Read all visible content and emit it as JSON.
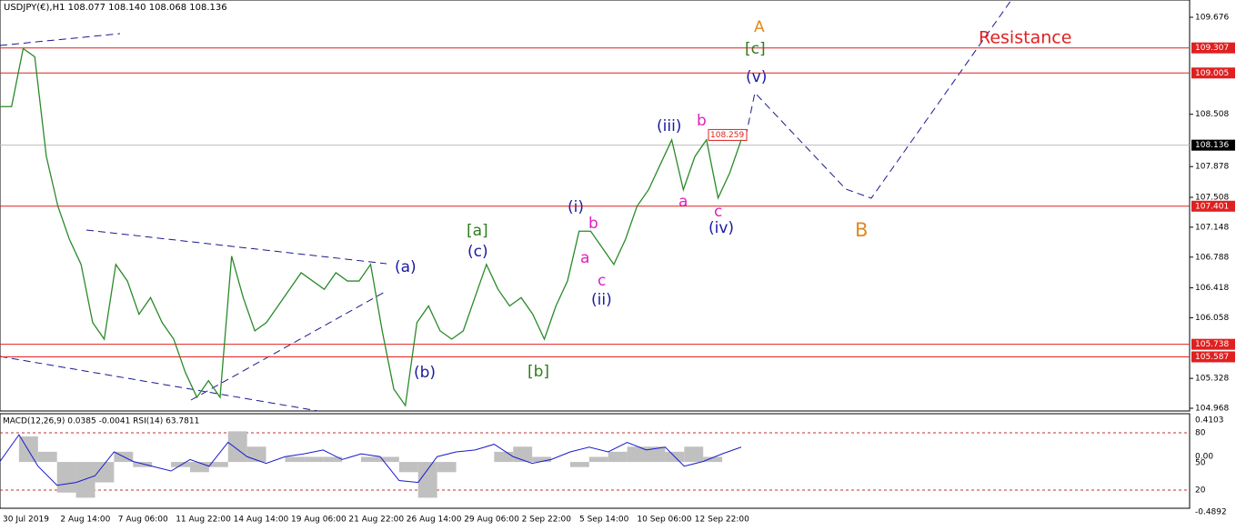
{
  "header": {
    "symbol": "USDJPY(€),H1  108.077 108.140 108.068 108.136"
  },
  "price_axis": {
    "ylim": [
      104.968,
      109.676
    ],
    "ticks": [
      109.676,
      108.508,
      107.878,
      107.508,
      107.148,
      106.788,
      106.418,
      106.058,
      105.328,
      104.968
    ]
  },
  "levels": [
    109.307,
    109.005,
    107.401,
    105.738,
    105.587
  ],
  "current_price": 108.136,
  "marker_price": 108.259,
  "time_labels": [
    "30 Jul 2019",
    "2 Aug 14:00",
    "7 Aug 06:00",
    "11 Aug 22:00",
    "14 Aug 14:00",
    "19 Aug 06:00",
    "21 Aug 22:00",
    "26 Aug 14:00",
    "29 Aug 06:00",
    "2 Sep 22:00",
    "5 Sep 14:00",
    "10 Sep 06:00",
    "12 Sep 22:00"
  ],
  "price": {
    "values": [
      108.6,
      108.6,
      109.3,
      109.2,
      108.0,
      107.4,
      107.0,
      106.7,
      106.0,
      105.8,
      106.7,
      106.5,
      106.1,
      106.3,
      106.0,
      105.8,
      105.4,
      105.1,
      105.3,
      105.1,
      106.8,
      106.3,
      105.9,
      106.0,
      106.2,
      106.4,
      106.6,
      106.5,
      106.4,
      106.6,
      106.5,
      106.5,
      106.7,
      105.9,
      105.2,
      105.0,
      106.0,
      106.2,
      105.9,
      105.8,
      105.9,
      106.3,
      106.7,
      106.4,
      106.2,
      106.3,
      106.1,
      105.8,
      106.2,
      106.5,
      107.1,
      107.1,
      106.9,
      106.7,
      107.0,
      107.4,
      107.6,
      107.9,
      108.2,
      107.6,
      108.0,
      108.2,
      107.5,
      107.8,
      108.2
    ]
  },
  "waves": {
    "A": "A",
    "c_big": "[c]",
    "v": "(v)",
    "iii": "(iii)",
    "b1": "b",
    "a1": "a",
    "c1": "c",
    "iv": "(iv)",
    "i": "(i)",
    "b2": "b",
    "a2": "a",
    "c2": "c",
    "ii": "(ii)",
    "a_br": "[a]",
    "c_par": "(c)",
    "b_br": "[b]",
    "a_par": "(a)",
    "b_par": "(b)",
    "B": "B"
  },
  "annotation": "Resistance",
  "indicator": {
    "header": "MACD(12,26,9) 0.0385 -0.0041  RSI(14) 63.7811",
    "labels": [
      "0.4103",
      "80",
      "0.00",
      "50",
      "20",
      "-0.4892"
    ],
    "macd_range": [
      -0.4892,
      0.4103
    ],
    "rsi_range": [
      20,
      80
    ],
    "macd": [
      0.0,
      0.25,
      0.1,
      -0.3,
      -0.35,
      -0.2,
      0.1,
      -0.05,
      0.0,
      -0.05,
      -0.1,
      -0.05,
      0.3,
      0.15,
      0.0,
      0.05,
      0.05,
      0.05,
      0.0,
      0.05,
      0.05,
      -0.1,
      -0.35,
      -0.1,
      0.0,
      0.0,
      0.1,
      0.15,
      0.05,
      0.0,
      -0.05,
      0.05,
      0.1,
      0.15,
      0.15,
      0.1,
      0.15,
      0.05,
      0.0
    ],
    "rsi": [
      50,
      78,
      45,
      25,
      28,
      35,
      60,
      50,
      45,
      40,
      52,
      45,
      70,
      55,
      48,
      55,
      58,
      62,
      52,
      58,
      55,
      30,
      28,
      55,
      60,
      62,
      68,
      55,
      48,
      52,
      60,
      65,
      60,
      70,
      62,
      65,
      45,
      50,
      58,
      65
    ]
  }
}
